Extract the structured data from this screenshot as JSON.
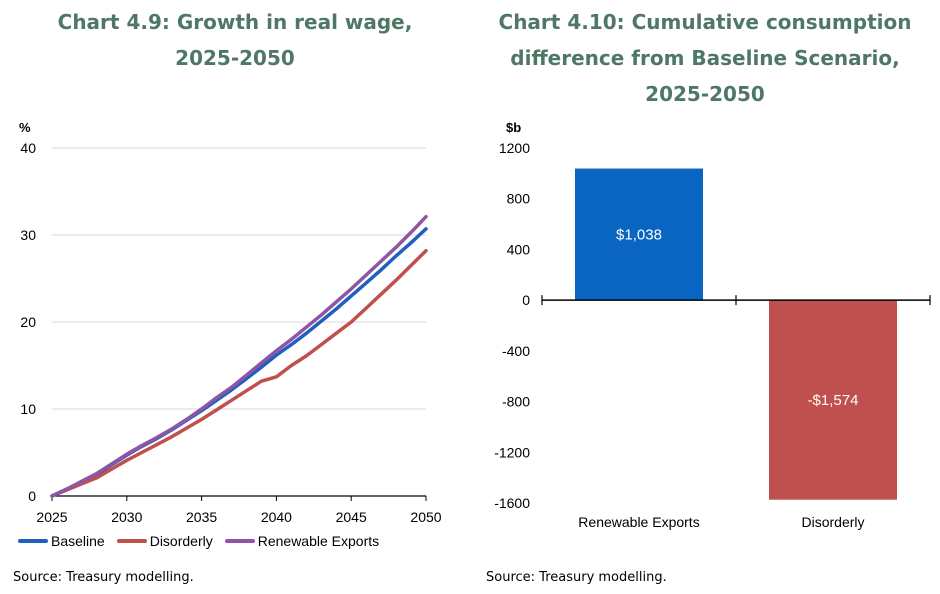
{
  "left": {
    "title_lines": [
      "Chart 4.9: Growth in real wage,",
      "2025-2050"
    ],
    "unit": "%",
    "source": "Source: Treasury modelling."
  },
  "right": {
    "title_lines": [
      "Chart 4.10: Cumulative consumption",
      "difference from Baseline Scenario,",
      "2025-2050"
    ],
    "unit": "$b",
    "source": "Source: Treasury modelling."
  },
  "chart_data": [
    {
      "type": "line",
      "title": "Chart 4.9: Growth in real wage, 2025-2050",
      "ylabel": "%",
      "xlabel": "",
      "xlim": [
        2025,
        2050
      ],
      "ylim": [
        0,
        40
      ],
      "x_ticks": [
        2025,
        2030,
        2035,
        2040,
        2045,
        2050
      ],
      "y_ticks": [
        0,
        10,
        20,
        30,
        40
      ],
      "grid": true,
      "legend_position": "bottom",
      "x": [
        2025,
        2026,
        2027,
        2028,
        2029,
        2030,
        2031,
        2032,
        2033,
        2034,
        2035,
        2036,
        2037,
        2038,
        2039,
        2040,
        2041,
        2042,
        2043,
        2044,
        2045,
        2046,
        2047,
        2048,
        2049,
        2050
      ],
      "series": [
        {
          "name": "Baseline",
          "color": "#1f5fbf",
          "values": [
            0,
            0.8,
            1.6,
            2.5,
            3.6,
            4.7,
            5.7,
            6.6,
            7.6,
            8.7,
            9.8,
            11.0,
            12.2,
            13.5,
            14.8,
            16.2,
            17.4,
            18.7,
            20.1,
            21.5,
            23.0,
            24.5,
            26.0,
            27.6,
            29.1,
            30.7
          ]
        },
        {
          "name": "Disorderly",
          "color": "#c0504d",
          "values": [
            0,
            0.7,
            1.4,
            2.1,
            3.1,
            4.1,
            5.0,
            5.9,
            6.8,
            7.8,
            8.8,
            9.9,
            11.0,
            12.1,
            13.2,
            13.7,
            15.0,
            16.1,
            17.4,
            18.7,
            20.0,
            21.6,
            23.2,
            24.8,
            26.5,
            28.2
          ]
        },
        {
          "name": "Renewable Exports",
          "color": "#8e55a6",
          "values": [
            0,
            0.8,
            1.7,
            2.6,
            3.7,
            4.8,
            5.8,
            6.7,
            7.7,
            8.8,
            10.0,
            11.3,
            12.5,
            13.9,
            15.3,
            16.7,
            18.0,
            19.4,
            20.8,
            22.3,
            23.8,
            25.4,
            27.0,
            28.6,
            30.3,
            32.1
          ]
        }
      ]
    },
    {
      "type": "bar",
      "title": "Chart 4.10: Cumulative consumption difference from Baseline Scenario, 2025-2050",
      "ylabel": "$b",
      "xlabel": "",
      "ylim": [
        -1600,
        1200
      ],
      "y_ticks": [
        1200,
        800,
        400,
        0,
        -400,
        -800,
        -1200,
        -1600
      ],
      "categories": [
        "Renewable Exports",
        "Disorderly"
      ],
      "values": [
        1038,
        -1574
      ],
      "data_labels": [
        "$1,038",
        "-$1,574"
      ],
      "colors": [
        "#0a65c2",
        "#c0504d"
      ],
      "grid": false
    }
  ]
}
